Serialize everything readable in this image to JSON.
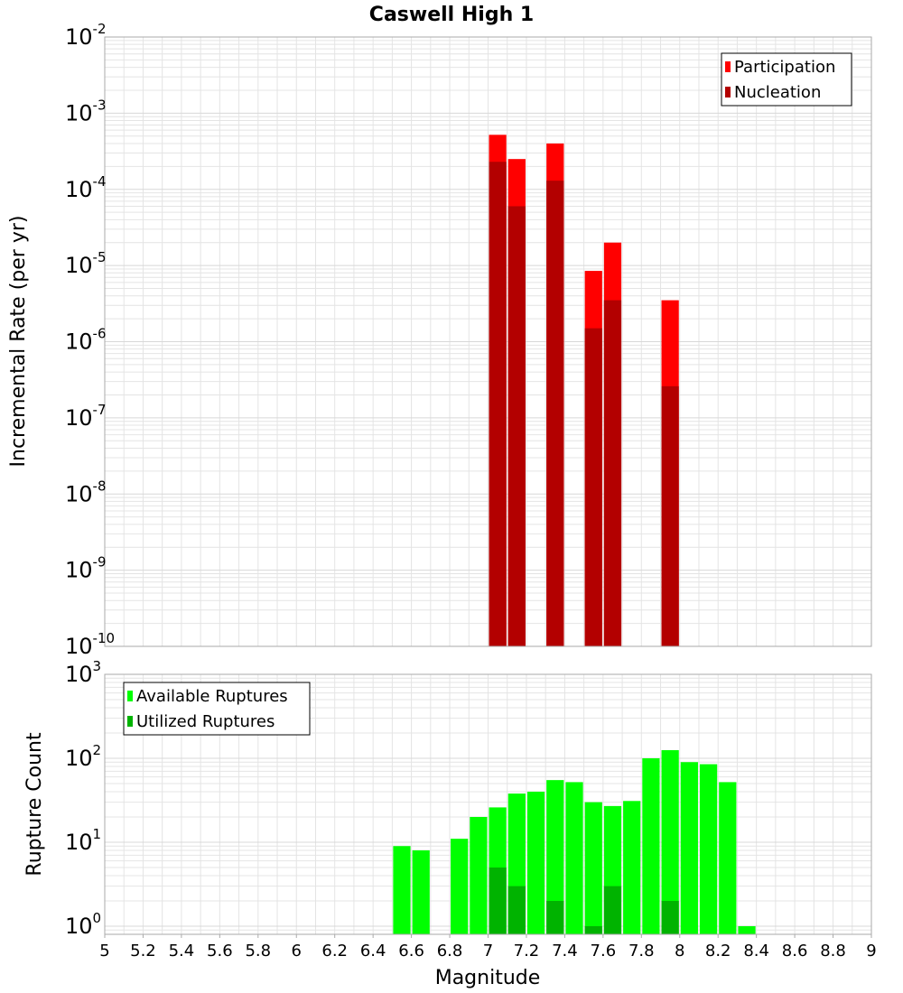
{
  "title": "Caswell High 1",
  "colors": {
    "participation": "#ff0000",
    "nucleation": "#b30000",
    "available": "#00ff00",
    "utilized": "#00b300",
    "grid": "#e4e4e4",
    "frame": "#aaaaaa"
  },
  "chart_data": [
    {
      "type": "bar",
      "scale": "log",
      "ylabel": "Incremental Rate (per yr)",
      "xlabel": "",
      "xlim": [
        5,
        9
      ],
      "ylim": [
        1e-10,
        0.01
      ],
      "y_ticks": [
        "10^-10",
        "10^-9",
        "10^-8",
        "10^-7",
        "10^-6",
        "10^-5",
        "10^-4",
        "10^-3",
        "10^-2"
      ],
      "x": [
        7.05,
        7.15,
        7.35,
        7.55,
        7.65,
        7.95
      ],
      "series": [
        {
          "name": "Participation",
          "values": [
            0.00052,
            0.00025,
            0.0004,
            8.5e-06,
            2e-05,
            3.5e-06
          ]
        },
        {
          "name": "Nucleation",
          "values": [
            0.00023,
            6e-05,
            0.00013,
            1.5e-06,
            3.5e-06,
            2.6e-07
          ]
        }
      ],
      "legend_position": "top-right"
    },
    {
      "type": "bar",
      "scale": "log",
      "ylabel": "Rupture Count",
      "xlabel": "Magnitude",
      "xlim": [
        5,
        9
      ],
      "ylim": [
        0.8,
        1000
      ],
      "y_ticks": [
        "10^0",
        "10^1",
        "10^2",
        "10^3"
      ],
      "x_ticks": [
        "5",
        "5.2",
        "5.4",
        "5.6",
        "5.8",
        "6",
        "6.2",
        "6.4",
        "6.6",
        "6.8",
        "7",
        "7.2",
        "7.4",
        "7.6",
        "7.8",
        "8",
        "8.2",
        "8.4",
        "8.6",
        "8.8",
        "9"
      ],
      "x": [
        6.55,
        6.65,
        6.85,
        6.95,
        7.05,
        7.15,
        7.25,
        7.35,
        7.45,
        7.55,
        7.65,
        7.75,
        7.85,
        7.95,
        8.05,
        8.15,
        8.25,
        8.35
      ],
      "series": [
        {
          "name": "Available Ruptures",
          "values": [
            9,
            8,
            11,
            20,
            26,
            38,
            40,
            55,
            52,
            30,
            27,
            31,
            100,
            125,
            90,
            85,
            52,
            1
          ]
        },
        {
          "name": "Utilized Ruptures",
          "values": [
            0,
            0,
            0,
            0,
            5,
            3,
            0,
            2,
            0,
            1,
            3,
            0,
            0,
            2,
            0,
            0,
            0,
            0
          ]
        }
      ],
      "legend_position": "top-left"
    }
  ]
}
